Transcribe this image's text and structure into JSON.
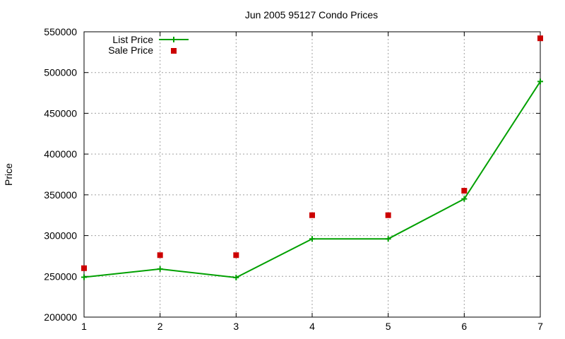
{
  "chart_data": {
    "type": "line",
    "title": "Jun 2005 95127 Condo Prices",
    "xlabel": "",
    "ylabel": "Price",
    "x": [
      1,
      2,
      3,
      4,
      5,
      6,
      7
    ],
    "xlim": [
      1,
      7
    ],
    "ylim": [
      200000,
      550000
    ],
    "xticks": [
      "1",
      "2",
      "3",
      "4",
      "5",
      "6",
      "7"
    ],
    "yticks": [
      "200000",
      "250000",
      "300000",
      "350000",
      "400000",
      "450000",
      "500000",
      "550000"
    ],
    "grid": true,
    "legend_position": "top-left",
    "series": [
      {
        "name": "List Price",
        "style": "line-with-plus-markers",
        "color": "#00a000",
        "values": [
          249000,
          259000,
          248500,
          296000,
          296000,
          345000,
          489000
        ]
      },
      {
        "name": "Sale Price",
        "style": "square-markers",
        "color": "#cc0000",
        "values": [
          260000,
          276000,
          276000,
          325000,
          325000,
          355000,
          542000
        ]
      }
    ]
  }
}
